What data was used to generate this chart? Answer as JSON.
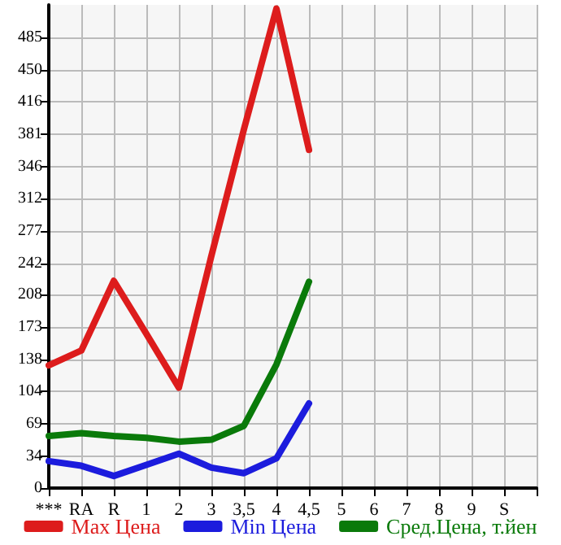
{
  "chart_data": {
    "type": "line",
    "categories": [
      "***",
      "RA",
      "R",
      "1",
      "2",
      "3",
      "3,5",
      "4",
      "4,5",
      "5",
      "6",
      "7",
      "8",
      "9",
      "S",
      null
    ],
    "series": [
      {
        "name": "Max Цена",
        "color": "#dd1c1c",
        "values": [
          132,
          148,
          223,
          166,
          108,
          250,
          386,
          516,
          364,
          null,
          null,
          null,
          null,
          null,
          null,
          null
        ]
      },
      {
        "name": "Min Цена",
        "color": "#1c1cdd",
        "values": [
          29,
          24,
          13,
          25,
          37,
          22,
          16,
          32,
          91,
          null,
          null,
          null,
          null,
          null,
          null,
          null
        ]
      },
      {
        "name": "Сред.Цена, т.йен",
        "color": "#0a7a0a",
        "values": [
          56,
          59,
          56,
          54,
          50,
          52,
          67,
          133,
          222,
          null,
          null,
          null,
          null,
          null,
          null,
          null
        ]
      }
    ],
    "ylim": [
      0,
      520
    ],
    "yticks": [
      0,
      34,
      69,
      104,
      138,
      173,
      208,
      242,
      277,
      312,
      346,
      381,
      416,
      450,
      485
    ],
    "grid": true,
    "legend": "bottom",
    "marker": "none",
    "line_style": "solid"
  }
}
